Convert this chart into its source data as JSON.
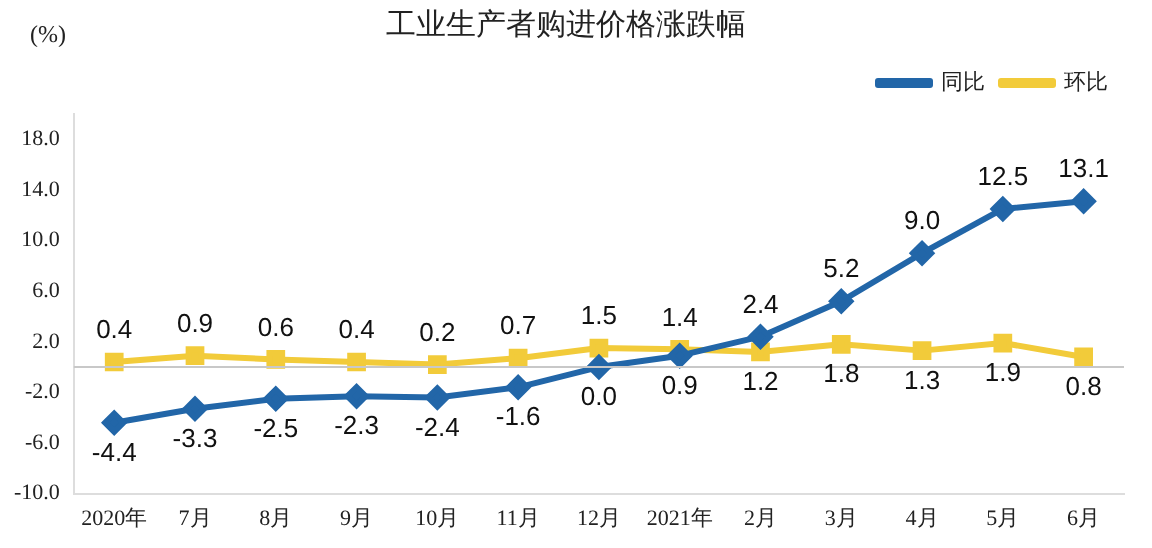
{
  "chart_data": {
    "type": "line",
    "title": "工业生产者购进价格涨跌幅",
    "ylabel": "(%)",
    "categories": [
      "2020年",
      "7月",
      "8月",
      "9月",
      "10月",
      "11月",
      "12月",
      "2021年",
      "2月",
      "3月",
      "4月",
      "5月",
      "6月"
    ],
    "series": [
      {
        "name": "同比",
        "color": "#2266a8",
        "marker": "diamond",
        "values": [
          -4.4,
          -3.3,
          -2.5,
          -2.3,
          -2.4,
          -1.6,
          0.0,
          0.9,
          2.4,
          5.2,
          9.0,
          12.5,
          13.1
        ],
        "value_labels": [
          "-4.4",
          "-3.3",
          "-2.5",
          "-2.3",
          "-2.4",
          "-1.6",
          "0.0",
          "0.9",
          "2.4",
          "5.2",
          "9.0",
          "12.5",
          "13.1"
        ]
      },
      {
        "name": "环比",
        "color": "#f2cb3a",
        "marker": "square",
        "values": [
          0.4,
          0.9,
          0.6,
          0.4,
          0.2,
          0.7,
          1.5,
          1.4,
          1.2,
          1.8,
          1.3,
          1.9,
          0.8
        ],
        "value_labels": [
          "0.4",
          "0.9",
          "0.6",
          "0.4",
          "0.2",
          "0.7",
          "1.5",
          "1.4",
          "1.2",
          "1.8",
          "1.3",
          "1.9",
          "0.8"
        ]
      }
    ],
    "ylim": [
      -10,
      20
    ],
    "yticks": [
      {
        "value": -10,
        "label": "-10.0"
      },
      {
        "value": -6,
        "label": "-6.0"
      },
      {
        "value": -2,
        "label": "-2.0"
      },
      {
        "value": 2,
        "label": "2.0"
      },
      {
        "value": 6,
        "label": "6.0"
      },
      {
        "value": 10,
        "label": "10.0"
      },
      {
        "value": 14,
        "label": "14.0"
      },
      {
        "value": 18,
        "label": "18.0"
      }
    ],
    "ref_lines": [
      {
        "axis": "y",
        "value": 0,
        "color": "#c8c8c8"
      }
    ],
    "grid": false,
    "legend": "top right",
    "line_style": "solid"
  }
}
